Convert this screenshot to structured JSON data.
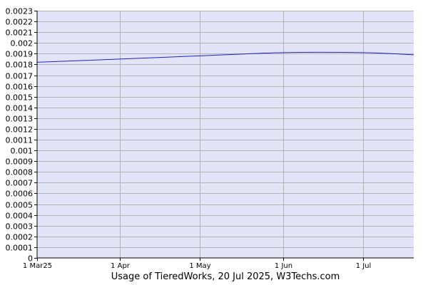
{
  "chart_data": {
    "type": "line",
    "title": "Usage of TieredWorks, 20 Jul 2025, W3Techs.com",
    "xlabel": "",
    "ylabel": "",
    "ylim": [
      0,
      0.0023
    ],
    "xlim": [
      "2025-03-01",
      "2025-07-20"
    ],
    "y_ticks": [
      "0",
      "0.0001",
      "0.0002",
      "0.0003",
      "0.0004",
      "0.0005",
      "0.0006",
      "0.0007",
      "0.0008",
      "0.0009",
      "0.001",
      "0.0011",
      "0.0012",
      "0.0013",
      "0.0014",
      "0.0015",
      "0.0016",
      "0.0017",
      "0.0018",
      "0.0019",
      "0.002",
      "0.0021",
      "0.0022",
      "0.0023"
    ],
    "x_ticks": [
      {
        "label": "1 Mar25",
        "date": "2025-03-01"
      },
      {
        "label": "1 Apr",
        "date": "2025-04-01"
      },
      {
        "label": "1 May",
        "date": "2025-05-01"
      },
      {
        "label": "1 Jun",
        "date": "2025-06-01"
      },
      {
        "label": "1 Jul",
        "date": "2025-07-01"
      }
    ],
    "grid": true,
    "colors": {
      "plot_background": "#e4e4f8",
      "line": "#1f1fcc",
      "grid": "#b4b4b4",
      "axis": "#000000"
    },
    "series": [
      {
        "x": [
          "2025-03-01",
          "2025-04-01",
          "2025-05-01",
          "2025-06-01",
          "2025-07-01",
          "2025-07-20"
        ],
        "values": [
          0.00182,
          0.00185,
          0.00188,
          0.00191,
          0.00191,
          0.00189
        ]
      }
    ]
  }
}
